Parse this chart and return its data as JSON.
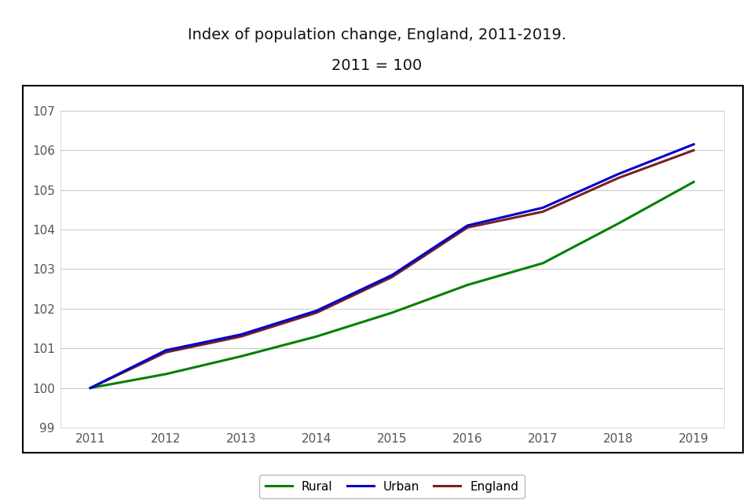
{
  "title_line1": "Index of population change, England, 2011-2019.",
  "title_line2": "2011 = 100",
  "years": [
    2011,
    2012,
    2013,
    2014,
    2015,
    2016,
    2017,
    2018,
    2019
  ],
  "rural": [
    100.0,
    100.35,
    100.8,
    101.3,
    101.9,
    102.6,
    103.15,
    104.15,
    105.2
  ],
  "urban": [
    100.0,
    100.95,
    101.35,
    101.95,
    102.85,
    104.1,
    104.55,
    105.4,
    106.15
  ],
  "england": [
    100.0,
    100.9,
    101.3,
    101.9,
    102.8,
    104.05,
    104.45,
    105.3,
    106.0
  ],
  "rural_color": "#008000",
  "urban_color": "#0000CD",
  "england_color": "#7B2020",
  "ylim_min": 99,
  "ylim_max": 107,
  "yticks": [
    99,
    100,
    101,
    102,
    103,
    104,
    105,
    106,
    107
  ],
  "xticks": [
    2011,
    2012,
    2013,
    2014,
    2015,
    2016,
    2017,
    2018,
    2019
  ],
  "line_width": 2.2,
  "background_color": "#ffffff",
  "plot_bg_color": "#ffffff",
  "grid_color": "#cccccc",
  "border_color": "#000000",
  "tick_label_color": "#555555",
  "legend_labels": [
    "Rural",
    "Urban",
    "England"
  ],
  "title_fontsize": 14,
  "tick_fontsize": 11
}
